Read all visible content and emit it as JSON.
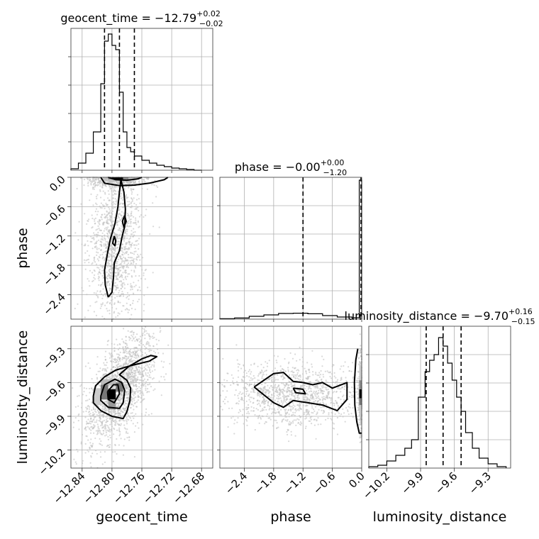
{
  "chart_data": {
    "type": "corner",
    "parameters": [
      "geocent_time",
      "phase",
      "luminosity_distance"
    ],
    "titles": [
      {
        "parameter": "geocent_time",
        "prefix": "geocent_time = ",
        "median": "−12.79",
        "plus": "+0.02",
        "minus": "−0.02"
      },
      {
        "parameter": "phase",
        "prefix": "phase = ",
        "median": "−0.00",
        "plus": "+0.00",
        "minus": "−1.20"
      },
      {
        "parameter": "luminosity_distance",
        "prefix": "luminosity_distance = ",
        "median": "−9.70",
        "plus": "+0.16",
        "minus": "−0.15"
      }
    ],
    "ranges": {
      "geocent_time": [
        -12.855,
        -12.665
      ],
      "phase": [
        -2.9,
        0.0
      ],
      "luminosity_distance": [
        -10.36,
        -9.1
      ]
    },
    "ticks": {
      "geocent_time": [
        -12.84,
        -12.8,
        -12.76,
        -12.72,
        -12.68
      ],
      "phase": [
        -2.4,
        -1.8,
        -1.2,
        -0.6,
        0.0
      ],
      "luminosity_distance": [
        -10.2,
        -9.9,
        -9.6,
        -9.3
      ]
    },
    "tick_labels": {
      "geocent_time": [
        "−12.84",
        "−12.80",
        "−12.76",
        "−12.72",
        "−12.68"
      ],
      "phase": [
        "−2.4",
        "−1.8",
        "−1.2",
        "−0.6",
        "0.0"
      ],
      "luminosity_distance": [
        "−10.2",
        "−9.9",
        "−9.6",
        "−9.3"
      ]
    },
    "quantiles": {
      "geocent_time": [
        -12.81,
        -12.79,
        -12.77
      ],
      "phase": [
        -1.2,
        -0.0
      ],
      "luminosity_distance": [
        -9.85,
        -9.7,
        -9.54
      ]
    },
    "histograms": {
      "geocent_time": {
        "bin_edges": [
          -12.855,
          -12.845,
          -12.835,
          -12.825,
          -12.815,
          -12.81,
          -12.805,
          -12.8,
          -12.795,
          -12.79,
          -12.785,
          -12.78,
          -12.775,
          -12.77,
          -12.76,
          -12.75,
          -12.74,
          -12.73,
          -12.72,
          -12.71,
          -12.7,
          -12.69,
          -12.68
        ],
        "counts": [
          0.01,
          0.05,
          0.12,
          0.27,
          0.61,
          0.91,
          0.96,
          0.88,
          0.85,
          0.55,
          0.27,
          0.16,
          0.13,
          0.1,
          0.07,
          0.05,
          0.035,
          0.025,
          0.015,
          0.01,
          0.005,
          0.0
        ]
      },
      "phase": {
        "bin_edges": [
          -2.9,
          -2.6,
          -2.3,
          -2.0,
          -1.7,
          -1.4,
          -1.1,
          -0.8,
          -0.5,
          -0.2,
          -0.05,
          0.0
        ],
        "counts": [
          0.003,
          0.008,
          0.02,
          0.03,
          0.04,
          0.042,
          0.038,
          0.025,
          0.015,
          0.01,
          0.98
        ]
      },
      "luminosity_distance": {
        "bin_edges": [
          -10.36,
          -10.28,
          -10.2,
          -10.12,
          -10.04,
          -9.98,
          -9.92,
          -9.86,
          -9.82,
          -9.78,
          -9.74,
          -9.7,
          -9.66,
          -9.62,
          -9.58,
          -9.54,
          -9.5,
          -9.44,
          -9.38,
          -9.3,
          -9.22,
          -9.14
        ],
        "counts": [
          0.01,
          0.02,
          0.05,
          0.09,
          0.14,
          0.2,
          0.5,
          0.68,
          0.76,
          0.8,
          0.92,
          0.86,
          0.74,
          0.62,
          0.5,
          0.4,
          0.25,
          0.14,
          0.07,
          0.03,
          0.01
        ]
      }
    },
    "contours": {
      "phase_vs_geocent_time": [
        [
          [
            -12.805,
            -2.45
          ],
          [
            -12.809,
            -2.2
          ],
          [
            -12.81,
            -1.9
          ],
          [
            -12.806,
            -1.55
          ],
          [
            -12.802,
            -1.25
          ],
          [
            -12.796,
            -0.95
          ],
          [
            -12.792,
            -0.6
          ],
          [
            -12.79,
            -0.3
          ],
          [
            -12.788,
            -0.05
          ],
          [
            -12.784,
            -0.3
          ],
          [
            -12.782,
            -0.65
          ],
          [
            -12.783,
            -1.0
          ],
          [
            -12.787,
            -1.25
          ],
          [
            -12.79,
            -1.5
          ],
          [
            -12.797,
            -1.75
          ],
          [
            -12.798,
            -2.05
          ],
          [
            -12.8,
            -2.35
          ],
          [
            -12.805,
            -2.45
          ]
        ],
        [
          [
            -12.783,
            -0.78
          ],
          [
            -12.786,
            -0.9
          ],
          [
            -12.784,
            -1.02
          ],
          [
            -12.781,
            -0.9
          ],
          [
            -12.783,
            -0.78
          ]
        ],
        [
          [
            -12.797,
            -1.2
          ],
          [
            -12.799,
            -1.35
          ],
          [
            -12.796,
            -1.4
          ],
          [
            -12.795,
            -1.3
          ],
          [
            -12.797,
            -1.2
          ]
        ],
        [
          [
            -12.815,
            0.0
          ],
          [
            -12.81,
            -0.12
          ],
          [
            -12.79,
            -0.17
          ],
          [
            -12.77,
            -0.16
          ],
          [
            -12.75,
            -0.12
          ],
          [
            -12.73,
            -0.05
          ],
          [
            -12.725,
            0.0
          ]
        ],
        [
          [
            -12.805,
            0.0
          ],
          [
            -12.795,
            -0.05
          ],
          [
            -12.78,
            -0.06
          ],
          [
            -12.765,
            -0.03
          ],
          [
            -12.76,
            0.0
          ]
        ]
      ],
      "luminosity_distance_vs_geocent_time": [
        [
          [
            -12.825,
            -9.72
          ],
          [
            -12.822,
            -9.63
          ],
          [
            -12.81,
            -9.55
          ],
          [
            -12.795,
            -9.49
          ],
          [
            -12.775,
            -9.45
          ],
          [
            -12.75,
            -9.41
          ],
          [
            -12.74,
            -9.37
          ],
          [
            -12.748,
            -9.36
          ],
          [
            -12.76,
            -9.39
          ],
          [
            -12.778,
            -9.46
          ],
          [
            -12.79,
            -9.53
          ],
          [
            -12.78,
            -9.58
          ],
          [
            -12.775,
            -9.65
          ],
          [
            -12.776,
            -9.76
          ],
          [
            -12.78,
            -9.86
          ],
          [
            -12.785,
            -9.92
          ],
          [
            -12.8,
            -9.9
          ],
          [
            -12.815,
            -9.85
          ],
          [
            -12.825,
            -9.78
          ],
          [
            -12.825,
            -9.72
          ]
        ],
        [
          [
            -12.815,
            -9.72
          ],
          [
            -12.81,
            -9.62
          ],
          [
            -12.796,
            -9.57
          ],
          [
            -12.787,
            -9.6
          ],
          [
            -12.783,
            -9.67
          ],
          [
            -12.785,
            -9.78
          ],
          [
            -12.79,
            -9.83
          ],
          [
            -12.805,
            -9.82
          ],
          [
            -12.815,
            -9.76
          ],
          [
            -12.815,
            -9.72
          ]
        ],
        [
          [
            -12.806,
            -9.68
          ],
          [
            -12.798,
            -9.62
          ],
          [
            -12.792,
            -9.62
          ],
          [
            -12.79,
            -9.7
          ],
          [
            -12.797,
            -9.78
          ],
          [
            -12.805,
            -9.75
          ],
          [
            -12.806,
            -9.68
          ]
        ]
      ],
      "luminosity_distance_vs_phase": [
        [
          [
            -2.2,
            -9.64
          ],
          [
            -1.8,
            -9.52
          ],
          [
            -1.6,
            -9.51
          ],
          [
            -1.4,
            -9.59
          ],
          [
            -1.2,
            -9.6
          ],
          [
            -1.0,
            -9.62
          ],
          [
            -0.8,
            -9.6
          ],
          [
            -0.6,
            -9.65
          ],
          [
            -0.3,
            -9.6
          ],
          [
            -0.3,
            -9.75
          ],
          [
            -0.5,
            -9.85
          ],
          [
            -0.8,
            -9.8
          ],
          [
            -1.1,
            -9.78
          ],
          [
            -1.4,
            -9.76
          ],
          [
            -1.6,
            -9.82
          ],
          [
            -1.8,
            -9.78
          ],
          [
            -2.2,
            -9.64
          ]
        ],
        [
          [
            -1.4,
            -9.65
          ],
          [
            -1.2,
            -9.66
          ],
          [
            -1.15,
            -9.7
          ],
          [
            -1.35,
            -9.69
          ],
          [
            -1.4,
            -9.65
          ]
        ],
        [
          [
            -0.08,
            -9.3
          ],
          [
            -0.12,
            -9.4
          ],
          [
            -0.15,
            -9.6
          ],
          [
            -0.14,
            -9.8
          ],
          [
            -0.1,
            -9.95
          ],
          [
            -0.05,
            -10.05
          ],
          [
            0.0,
            -10.05
          ]
        ]
      ]
    },
    "density_blocks": {
      "phase_vs_geocent_time": [
        {
          "x": [
            -12.8,
            -12.785
          ],
          "y": [
            -0.04,
            0.0
          ],
          "gray": "#000000"
        },
        {
          "x": [
            -12.805,
            -12.8
          ],
          "y": [
            -0.04,
            0.0
          ],
          "gray": "#888888"
        },
        {
          "x": [
            -12.785,
            -12.778
          ],
          "y": [
            -0.04,
            0.0
          ],
          "gray": "#888888"
        }
      ],
      "luminosity_distance_vs_geocent_time": [
        {
          "x": [
            -12.805,
            -12.795
          ],
          "y": [
            -9.75,
            -9.66
          ],
          "gray": "#000000"
        },
        {
          "x": [
            -12.815,
            -12.805
          ],
          "y": [
            -9.75,
            -9.62
          ],
          "gray": "#777777"
        },
        {
          "x": [
            -12.795,
            -12.785
          ],
          "y": [
            -9.68,
            -9.6
          ],
          "gray": "#777777"
        },
        {
          "x": [
            -12.805,
            -12.795
          ],
          "y": [
            -9.84,
            -9.75
          ],
          "gray": "#999999"
        },
        {
          "x": [
            -12.815,
            -12.795
          ],
          "y": [
            -9.62,
            -9.57
          ],
          "gray": "#bbbbbb"
        },
        {
          "x": [
            -12.825,
            -12.815
          ],
          "y": [
            -9.8,
            -9.65
          ],
          "gray": "#cccccc"
        }
      ],
      "luminosity_distance_vs_phase": [
        {
          "x": [
            -0.05,
            0.0
          ],
          "y": [
            -9.74,
            -9.66
          ],
          "gray": "#000000"
        },
        {
          "x": [
            -0.05,
            0.0
          ],
          "y": [
            -9.8,
            -9.74
          ],
          "gray": "#777777"
        },
        {
          "x": [
            -0.05,
            0.0
          ],
          "y": [
            -9.66,
            -9.58
          ],
          "gray": "#888888"
        },
        {
          "x": [
            -0.05,
            0.0
          ],
          "y": [
            -9.58,
            -9.45
          ],
          "gray": "#cccccc"
        },
        {
          "x": [
            -0.05,
            0.0
          ],
          "y": [
            -9.9,
            -9.8
          ],
          "gray": "#cccccc"
        }
      ]
    },
    "scatter": {
      "phase_vs_geocent_time": {
        "cx": -12.795,
        "sx": 0.018,
        "cy": -1.4,
        "sy": 0.75,
        "n": 1800
      },
      "luminosity_distance_vs_geocent_time": {
        "cx": -12.79,
        "sx": 0.022,
        "cy": -9.66,
        "sy": 0.2,
        "n": 1800
      },
      "luminosity_distance_vs_phase": {
        "cx": -1.4,
        "sx": 0.7,
        "cy": -9.7,
        "sy": 0.14,
        "n": 1800
      }
    },
    "grid": true,
    "colors": {
      "line": "#000000",
      "scatter": "#c0c0c0",
      "grid": "#b0b0b0"
    }
  }
}
